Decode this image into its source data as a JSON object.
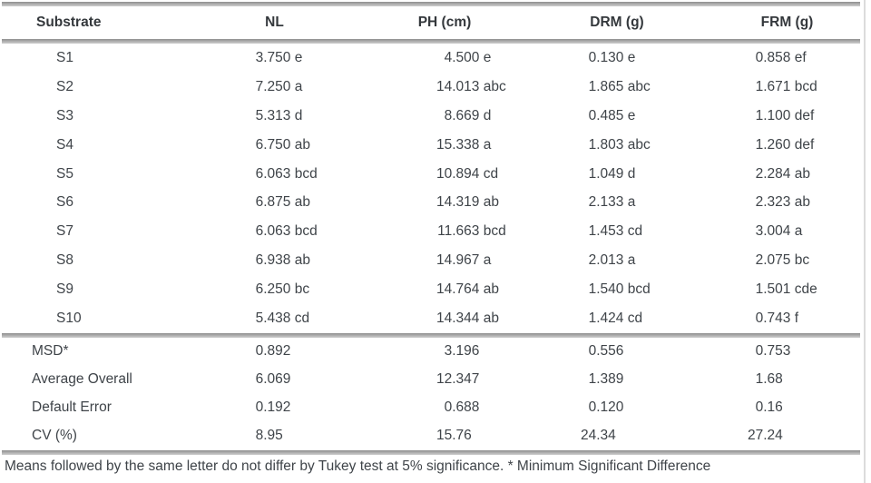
{
  "table": {
    "columns": [
      "Substrate",
      "NL",
      "PH (cm)",
      "DRM (g)",
      "FRM (g)"
    ],
    "rows": [
      {
        "substrate": "S1",
        "nl": "3.750 e",
        "ph": "4.500 e",
        "drm": "0.130 e",
        "frm": "0.858 ef"
      },
      {
        "substrate": "S2",
        "nl": "7.250 a",
        "ph": "14.013 abc",
        "drm": "1.865 abc",
        "frm": "1.671 bcd"
      },
      {
        "substrate": "S3",
        "nl": "5.313 d",
        "ph": "8.669 d",
        "drm": "0.485 e",
        "frm": "1.100 def"
      },
      {
        "substrate": "S4",
        "nl": "6.750 ab",
        "ph": "15.338 a",
        "drm": "1.803 abc",
        "frm": "1.260 def"
      },
      {
        "substrate": "S5",
        "nl": "6.063 bcd",
        "ph": "10.894 cd",
        "drm": "1.049 d",
        "frm": "2.284 ab"
      },
      {
        "substrate": "S6",
        "nl": "6.875 ab",
        "ph": "14.319 ab",
        "drm": "2.133 a",
        "frm": "2.323 ab"
      },
      {
        "substrate": "S7",
        "nl": "6.063 bcd",
        "ph": "11.663 bcd",
        "drm": "1.453 cd",
        "frm": "3.004 a"
      },
      {
        "substrate": "S8",
        "nl": "6.938 ab",
        "ph": "14.967 a",
        "drm": "2.013 a",
        "frm": "2.075 bc"
      },
      {
        "substrate": "S9",
        "nl": "6.250 bc",
        "ph": "14.764 ab",
        "drm": "1.540 bcd",
        "frm": "1.501 cde"
      },
      {
        "substrate": "S10",
        "nl": "5.438 cd",
        "ph": "14.344 ab",
        "drm": "1.424 cd",
        "frm": "0.743 f"
      }
    ],
    "summary_rows": [
      {
        "label": "MSD*",
        "nl": "0.892",
        "ph": "3.196",
        "drm": "0.556",
        "frm": "0.753"
      },
      {
        "label": "Average Overall",
        "nl": "6.069",
        "ph": "12.347",
        "drm": "1.389",
        "frm": "1.68"
      },
      {
        "label": "Default Error",
        "nl": "0.192",
        "ph": "0.688",
        "drm": "0.120",
        "frm": "0.16"
      },
      {
        "label": "CV (%)",
        "nl": "8.95",
        "ph": "15.76",
        "drm": "24.34",
        "frm": "27.24"
      }
    ],
    "footnote": "Means followed by the same letter do not differ by Tukey test at 5% significance. * Minimum Significant Difference"
  },
  "colors": {
    "text": "#3f4449",
    "header_text": "#34383c",
    "rule_dark": "#8d8d8d",
    "rule_light": "#cdcdcd",
    "edge_line": "#dcdcdc",
    "background": "#ffffff"
  }
}
